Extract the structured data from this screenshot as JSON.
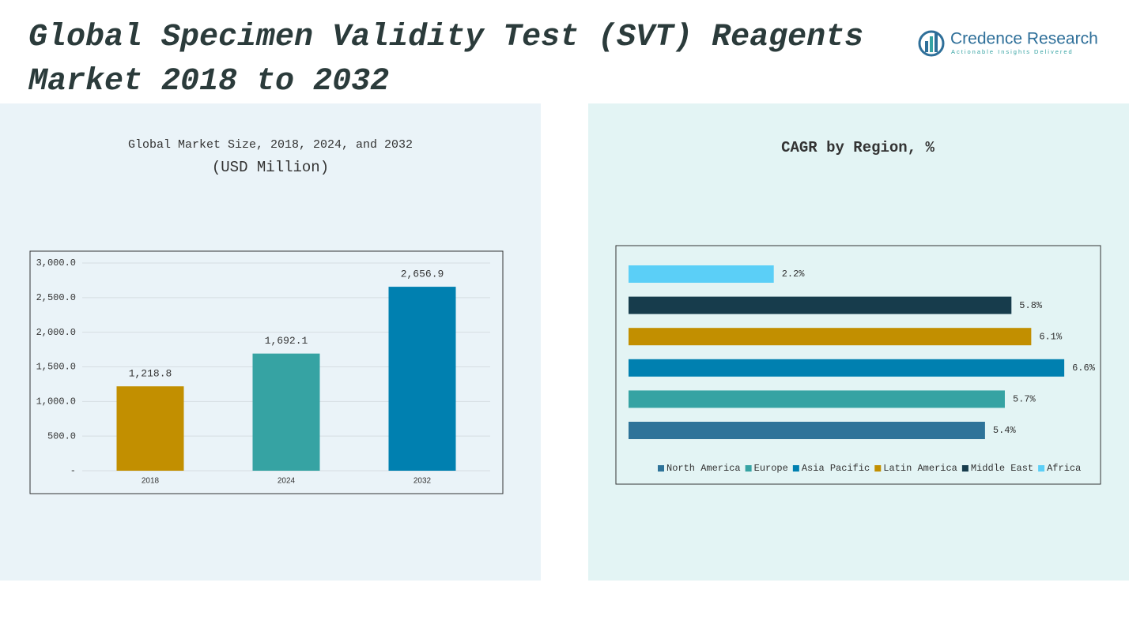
{
  "header": {
    "title": "Global Specimen Validity Test (SVT) Reagents Market 2018 to 2032",
    "brand": "Credence Research",
    "tagline": "Actionable Insights Delivered"
  },
  "chart_data": [
    {
      "type": "bar",
      "title": "Global Market Size, 2018, 2024, and 2032",
      "subtitle": "(USD Million)",
      "categories": [
        "2018",
        "2024",
        "2032"
      ],
      "values": [
        1218.8,
        1692.1,
        2656.9
      ],
      "value_labels": [
        "1,218.8",
        "1,692.1",
        "2,656.9"
      ],
      "colors": [
        "#c28f00",
        "#36a3a3",
        "#0080b0"
      ],
      "ylim": [
        0,
        3000
      ],
      "yticks": [
        {
          "value": 0,
          "label": "-"
        },
        {
          "value": 500,
          "label": "500.0"
        },
        {
          "value": 1000,
          "label": "1,000.0"
        },
        {
          "value": 1500,
          "label": "1,500.0"
        },
        {
          "value": 2000,
          "label": "2,000.0"
        },
        {
          "value": 2500,
          "label": "2,500.0"
        },
        {
          "value": 3000,
          "label": "3,000.0"
        }
      ],
      "grid": true
    },
    {
      "type": "hbar",
      "title": "CAGR by Region, %",
      "categories": [
        "North America",
        "Europe",
        "Asia Pacific",
        "Latin America",
        "Middle East",
        "Africa"
      ],
      "values": [
        5.4,
        5.7,
        6.6,
        6.1,
        5.8,
        2.2
      ],
      "value_labels": [
        "5.4%",
        "5.7%",
        "6.6%",
        "6.1%",
        "5.8%",
        "2.2%"
      ],
      "colors": [
        "#2e7399",
        "#36a3a3",
        "#0080b0",
        "#c28f00",
        "#173c4c",
        "#5bcff7"
      ],
      "xlim": [
        0,
        7
      ],
      "legend": "bottom"
    }
  ]
}
